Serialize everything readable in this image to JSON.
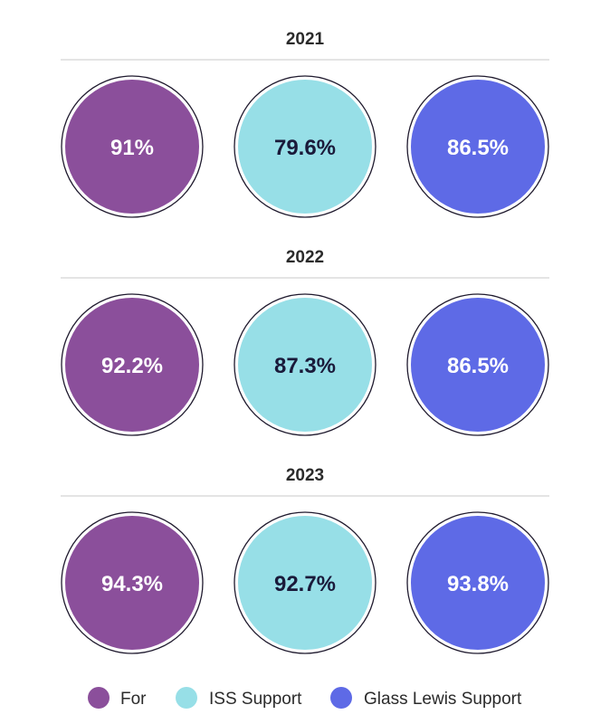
{
  "chart_data": {
    "type": "bubble-grid",
    "series": [
      {
        "name": "For",
        "color": "#8b4f9b",
        "text_color": "#ffffff"
      },
      {
        "name": "ISS Support",
        "color": "#97dfe7",
        "text_color": "#1a1a3a"
      },
      {
        "name": "Glass Lewis Support",
        "color": "#5e6ae6",
        "text_color": "#ffffff"
      }
    ],
    "groups": [
      {
        "year": "2021",
        "values": [
          91,
          79.6,
          86.5
        ],
        "labels": [
          "91%",
          "79.6%",
          "86.5%"
        ]
      },
      {
        "year": "2022",
        "values": [
          92.2,
          87.3,
          86.5
        ],
        "labels": [
          "92.2%",
          "87.3%",
          "86.5%"
        ]
      },
      {
        "year": "2023",
        "values": [
          94.3,
          92.7,
          93.8
        ],
        "labels": [
          "94.3%",
          "92.7%",
          "93.8%"
        ]
      }
    ],
    "legend_position": "bottom"
  }
}
